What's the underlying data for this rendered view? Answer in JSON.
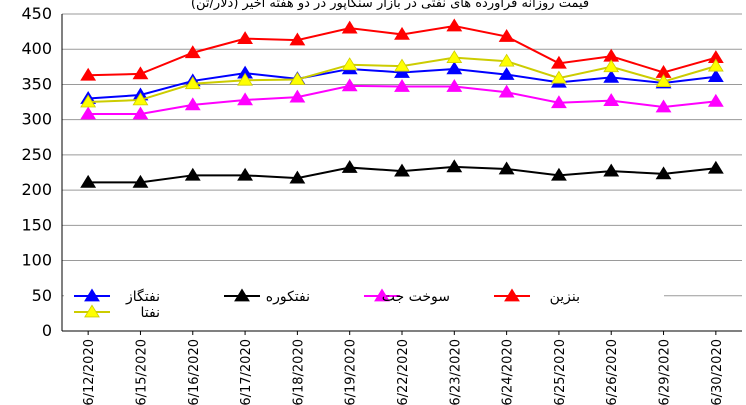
{
  "chart_data": {
    "type": "line",
    "title": "قیمت روزانه فراورده های نفتی در بازار سنگاپور در دو هفته اخیر (دلار/تن)",
    "categories": [
      "6/12/2020",
      "6/15/2020",
      "6/16/2020",
      "6/17/2020",
      "6/18/2020",
      "6/19/2020",
      "6/22/2020",
      "6/23/2020",
      "6/24/2020",
      "6/25/2020",
      "6/26/2020",
      "6/29/2020",
      "6/30/2020"
    ],
    "ylim": [
      0,
      450
    ],
    "yticks": [
      0,
      50,
      100,
      150,
      200,
      250,
      300,
      350,
      400,
      450
    ],
    "grid": true,
    "legend_position": "bottom-left",
    "series": [
      {
        "name": "نفتگاز",
        "color": "#0000ff",
        "marker_color": "#0000ff",
        "values": [
          330,
          335,
          355,
          366,
          358,
          372,
          367,
          372,
          364,
          353,
          360,
          352,
          361
        ]
      },
      {
        "name": "نفتکوره",
        "color": "#000000",
        "marker_color": "#000000",
        "values": [
          211,
          211,
          221,
          221,
          217,
          232,
          227,
          233,
          230,
          221,
          227,
          223,
          231
        ]
      },
      {
        "name": "سوخت جت",
        "color": "#ff00ff",
        "marker_color": "#ff00ff",
        "values": [
          308,
          308,
          321,
          328,
          332,
          348,
          347,
          347,
          339,
          324,
          327,
          318,
          326
        ]
      },
      {
        "name": "بنزین",
        "color": "#ff0000",
        "marker_color": "#ff0000",
        "values": [
          363,
          365,
          395,
          415,
          413,
          430,
          421,
          433,
          418,
          380,
          390,
          367,
          388
        ]
      },
      {
        "name": "نفتا",
        "color": "#cccc00",
        "marker_color": "#ffff00",
        "values": [
          325,
          328,
          351,
          356,
          357,
          378,
          376,
          388,
          383,
          359,
          375,
          354,
          376
        ]
      }
    ]
  }
}
